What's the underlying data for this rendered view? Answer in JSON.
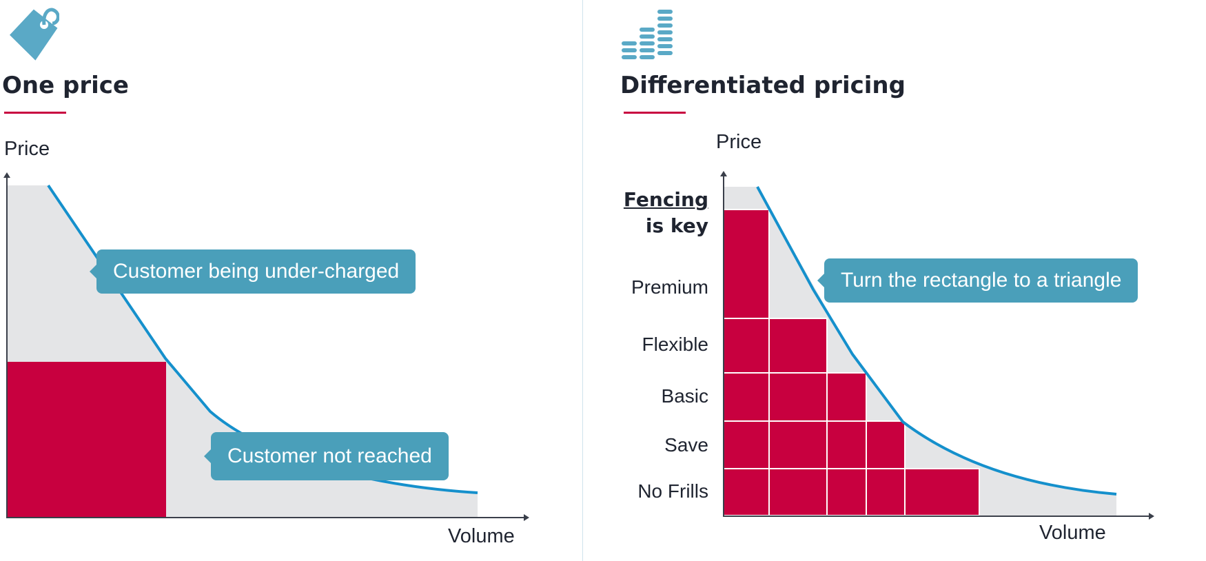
{
  "colors": {
    "accent": "#c8003f",
    "curve": "#1590cc",
    "fill_area": "#e4e5e7",
    "callout_bg": "#4a9fba",
    "icon": "#5aa9c6",
    "axis": "#3a3f4a",
    "text": "#1f2430"
  },
  "left_panel": {
    "icon": "price-tag-icon",
    "title": "One price",
    "y_axis_label": "Price",
    "x_axis_label": "Volume",
    "callouts": {
      "under_charged": "Customer being under-charged",
      "not_reached": "Customer not reached"
    }
  },
  "right_panel": {
    "icon": "bar-stack-icon",
    "title": "Differentiated pricing",
    "y_axis_label": "Price",
    "x_axis_label": "Volume",
    "fencing_label": {
      "line1": "Fencing",
      "line2": "is key"
    },
    "tiers": [
      "Premium",
      "Flexible",
      "Basic",
      "Save",
      "No Frills"
    ],
    "callout": "Turn the rectangle to a triangle"
  }
}
